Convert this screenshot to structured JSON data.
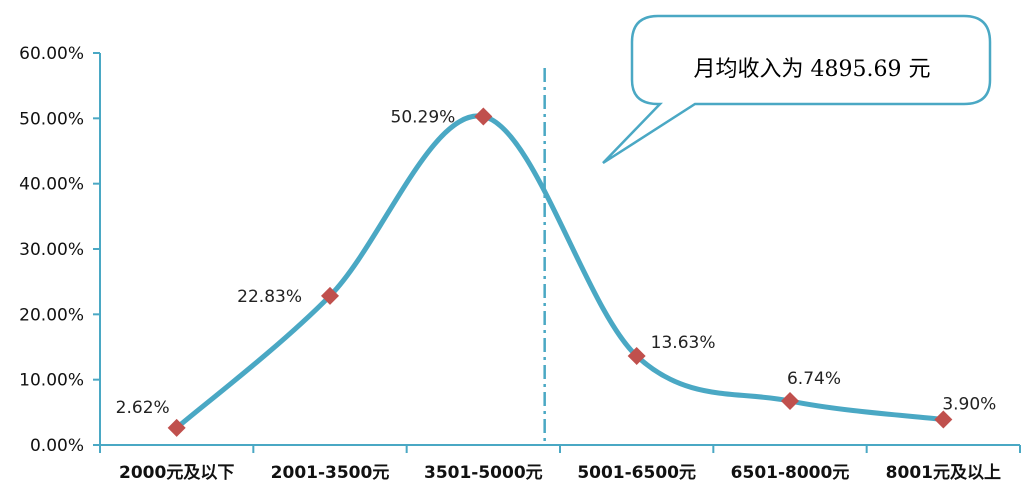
{
  "chart_data": {
    "type": "line",
    "categories": [
      "2000元及以下",
      "2001-3500元",
      "3501-5000元",
      "5001-6500元",
      "6501-8000元",
      "8001元及以上"
    ],
    "values": [
      2.62,
      22.83,
      50.29,
      13.63,
      6.74,
      3.9
    ],
    "data_labels": [
      "2.62%",
      "22.83%",
      "50.29%",
      "13.63%",
      "6.74%",
      "3.90%"
    ],
    "y_ticks": [
      "0.00%",
      "10.00%",
      "20.00%",
      "30.00%",
      "40.00%",
      "50.00%",
      "60.00%"
    ],
    "ylim": [
      0,
      60
    ],
    "smooth": true,
    "grid": false,
    "reference_line": {
      "x": 4895.69,
      "style": "dash-dot"
    },
    "annotation": "月均收入为 4895.69 元",
    "colors": {
      "line": "#4aa8c4",
      "marker": "#c0504d",
      "axis": "#4aa8c4",
      "callout_border": "#4aa8c4"
    }
  }
}
